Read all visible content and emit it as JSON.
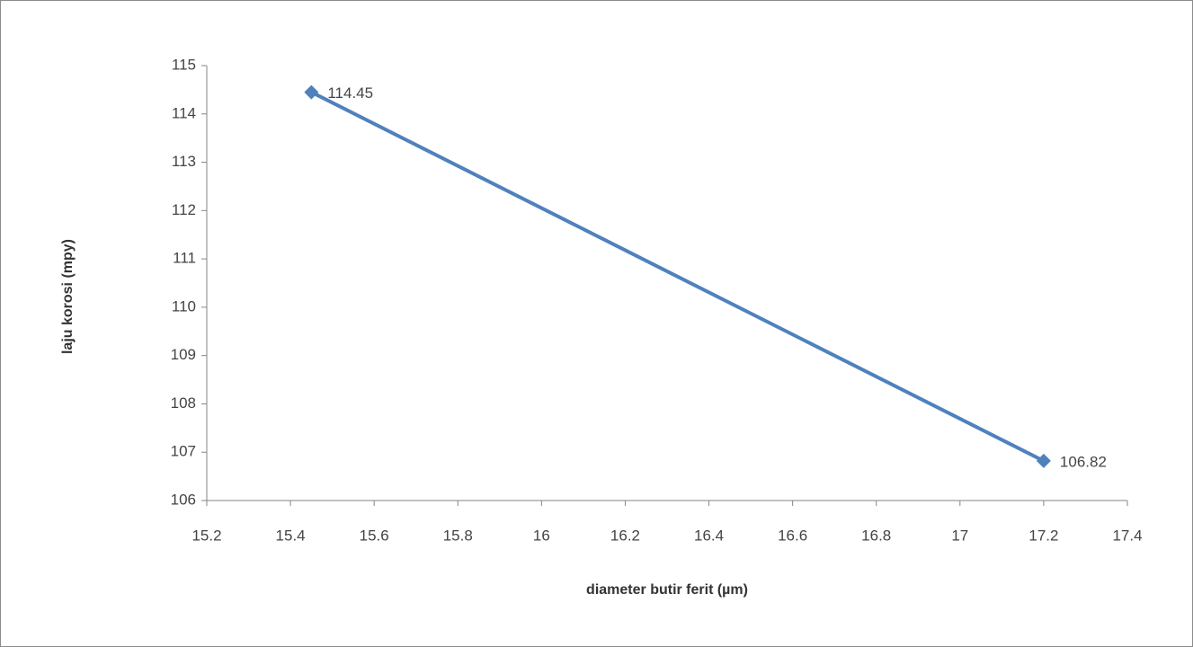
{
  "chart_data": {
    "type": "line",
    "x_label": "diameter butir ferit (µm)",
    "y_label": "laju korosi (mpy)",
    "x": [
      15.45,
      17.2
    ],
    "series": [
      {
        "color": "#4f81bd",
        "values": [
          114.45,
          106.82
        ]
      }
    ],
    "xlim": [
      15.2,
      17.4
    ],
    "xticks": [
      15.2,
      15.4,
      15.6,
      15.8,
      16,
      16.2,
      16.4,
      16.6,
      16.8,
      17,
      17.2,
      17.4
    ],
    "ylim": [
      106,
      115
    ],
    "yticks": [
      106,
      107,
      108,
      109,
      110,
      111,
      112,
      113,
      114,
      115
    ],
    "grid": false,
    "data_labels": true
  }
}
